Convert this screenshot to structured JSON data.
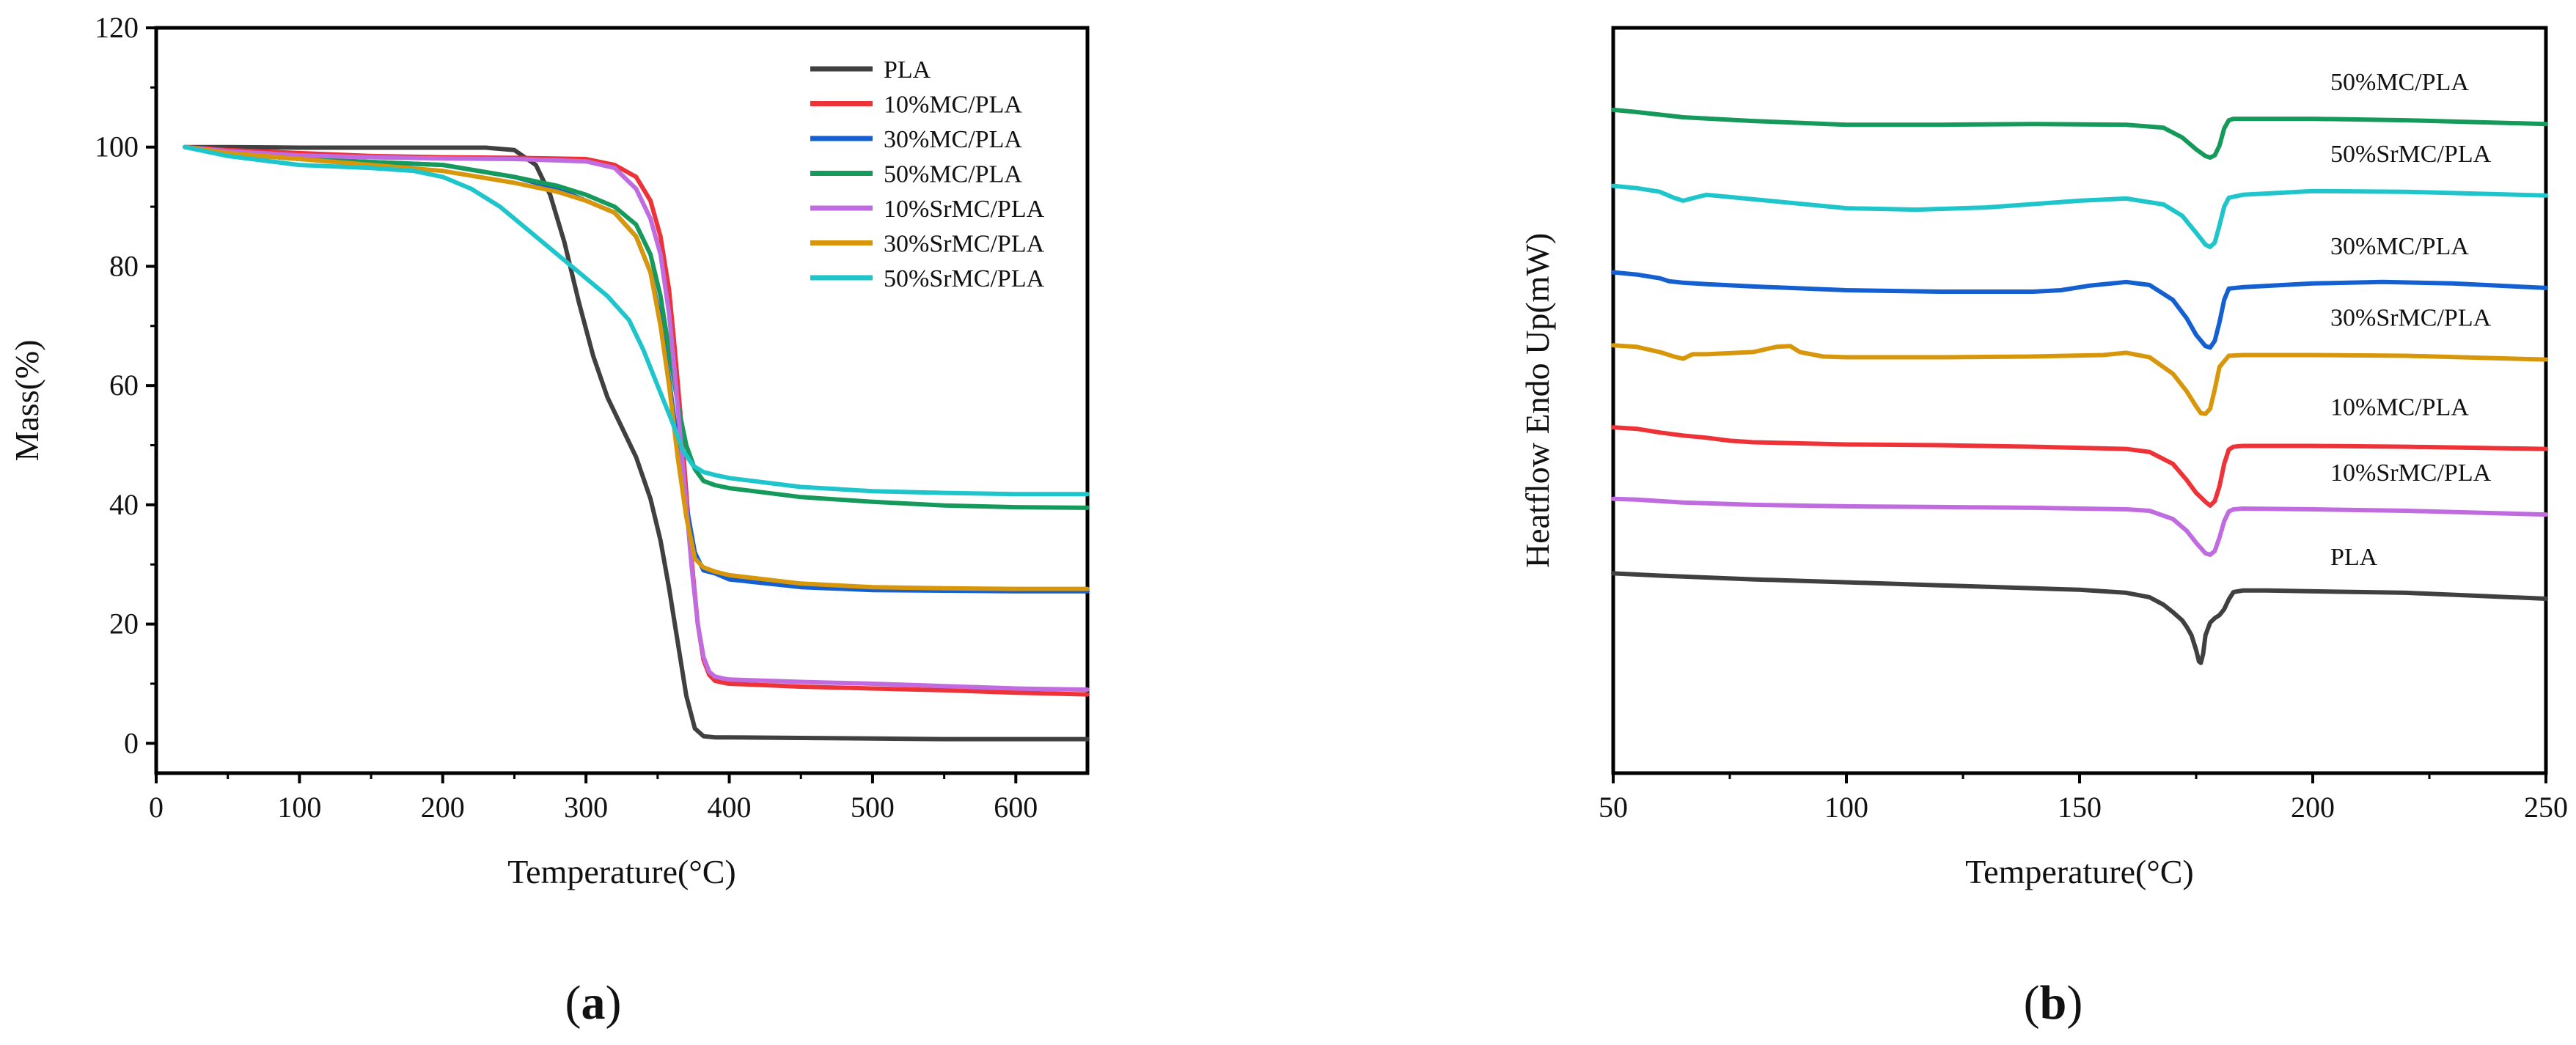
{
  "figure": {
    "panels": [
      {
        "open": "(",
        "letter": "a",
        "close": ")"
      },
      {
        "open": "(",
        "letter": "b",
        "close": ")"
      }
    ]
  },
  "chart_data": [
    {
      "type": "line",
      "panel": "a",
      "title": "",
      "xlabel": "Temperature(°C)",
      "ylabel": "Mass(%)",
      "xlim": [
        0,
        650
      ],
      "ylim": [
        -5,
        120
      ],
      "xticks": [
        0,
        100,
        200,
        300,
        400,
        500,
        600
      ],
      "yticks": [
        0,
        20,
        40,
        60,
        80,
        100,
        120
      ],
      "legend_position": "top-right",
      "series": [
        {
          "name": "PLA",
          "color": "#404040",
          "x": [
            20,
            50,
            100,
            150,
            200,
            230,
            250,
            265,
            275,
            285,
            295,
            305,
            315,
            325,
            335,
            345,
            352,
            358,
            364,
            370,
            376,
            382,
            390,
            400,
            450,
            500,
            550,
            600,
            650
          ],
          "y": [
            100,
            100,
            99.9,
            99.9,
            99.9,
            99.9,
            99.5,
            97,
            92,
            84,
            74,
            65,
            58,
            53,
            48,
            41,
            34,
            26,
            17,
            8,
            2.5,
            1.2,
            1.0,
            1.0,
            0.9,
            0.8,
            0.7,
            0.7,
            0.7
          ]
        },
        {
          "name": "10%MC/PLA",
          "color": "#ee3338",
          "x": [
            20,
            50,
            100,
            150,
            200,
            250,
            300,
            320,
            335,
            345,
            352,
            358,
            362,
            366,
            370,
            374,
            378,
            382,
            386,
            390,
            395,
            400,
            450,
            500,
            550,
            600,
            650
          ],
          "y": [
            100,
            99.5,
            99,
            98.5,
            98.3,
            98.2,
            98,
            97,
            95,
            91,
            85,
            76,
            66,
            55,
            42,
            30,
            20,
            14,
            11.5,
            10.5,
            10.2,
            10,
            9.5,
            9.2,
            8.9,
            8.5,
            8.2
          ]
        },
        {
          "name": "30%MC/PLA",
          "color": "#1560d0",
          "x": [
            20,
            50,
            100,
            150,
            200,
            250,
            280,
            300,
            320,
            335,
            345,
            352,
            358,
            364,
            370,
            376,
            382,
            390,
            400,
            450,
            500,
            550,
            600,
            650
          ],
          "y": [
            100,
            99,
            98,
            97.5,
            97,
            95,
            93,
            91,
            89,
            85,
            79,
            71,
            61,
            50,
            40,
            32,
            29,
            28.5,
            27.5,
            26.2,
            25.7,
            25.6,
            25.5,
            25.5
          ]
        },
        {
          "name": "50%MC/PLA",
          "color": "#159a5b",
          "x": [
            20,
            50,
            100,
            150,
            200,
            250,
            280,
            300,
            320,
            335,
            345,
            352,
            358,
            364,
            370,
            376,
            382,
            390,
            400,
            450,
            500,
            550,
            600,
            650
          ],
          "y": [
            100,
            99,
            98,
            97.5,
            97,
            95,
            93.5,
            92,
            90,
            87,
            82,
            75,
            66,
            57,
            50,
            46,
            44,
            43.3,
            42.8,
            41.3,
            40.5,
            39.9,
            39.6,
            39.5
          ]
        },
        {
          "name": "10%SrMC/PLA",
          "color": "#c06ce0",
          "x": [
            20,
            50,
            100,
            150,
            200,
            250,
            300,
            320,
            335,
            345,
            352,
            358,
            362,
            366,
            370,
            374,
            378,
            382,
            386,
            390,
            395,
            400,
            450,
            500,
            550,
            600,
            650
          ],
          "y": [
            100,
            99.3,
            98.6,
            98.3,
            98.1,
            98,
            97.6,
            96.5,
            93,
            88,
            82,
            72,
            62,
            51,
            40,
            29,
            20,
            14.5,
            12,
            11.2,
            10.9,
            10.7,
            10.3,
            10,
            9.6,
            9.2,
            9.0
          ]
        },
        {
          "name": "30%SrMC/PLA",
          "color": "#d8960a",
          "x": [
            20,
            50,
            100,
            150,
            200,
            250,
            280,
            300,
            320,
            335,
            345,
            352,
            358,
            364,
            370,
            376,
            382,
            390,
            400,
            450,
            500,
            550,
            600,
            650
          ],
          "y": [
            100,
            99,
            98,
            97,
            96,
            94,
            92.5,
            91,
            89,
            85,
            79,
            70,
            60,
            48,
            38,
            31,
            29.5,
            28.8,
            28.2,
            26.8,
            26.2,
            26,
            25.9,
            25.9
          ]
        },
        {
          "name": "50%SrMC/PLA",
          "color": "#1ec6cc",
          "x": [
            20,
            50,
            100,
            150,
            180,
            200,
            220,
            240,
            260,
            280,
            300,
            315,
            330,
            340,
            350,
            360,
            368,
            375,
            382,
            390,
            400,
            450,
            500,
            550,
            600,
            650
          ],
          "y": [
            100,
            98.5,
            97,
            96.5,
            96,
            95,
            93,
            90,
            86,
            82,
            78,
            75,
            71,
            66,
            60,
            54,
            49,
            46.5,
            45.5,
            45,
            44.5,
            43,
            42.3,
            42,
            41.8,
            41.8
          ]
        }
      ]
    },
    {
      "type": "line",
      "panel": "b",
      "title": "",
      "xlabel": "Temperature(°C)",
      "ylabel": "Heatflow Endo Up(mW)",
      "xlim": [
        50,
        250
      ],
      "ylim": [
        0,
        100
      ],
      "xticks": [
        50,
        100,
        150,
        200,
        250
      ],
      "yticks": [],
      "y_units": "arbitrary (curves vertically offset, no y tick labels)",
      "legend_position": "inline labels above each curve, right side",
      "series": [
        {
          "name": "50%MC/PLA",
          "color": "#159a5b",
          "x": [
            50,
            55,
            65,
            80,
            100,
            120,
            140,
            160,
            168,
            172,
            175,
            177,
            178,
            179,
            180,
            181,
            182,
            183,
            185,
            200,
            220,
            250
          ],
          "y": [
            89,
            88.7,
            88,
            87.5,
            87,
            87,
            87.1,
            87,
            86.6,
            85.3,
            83.7,
            82.8,
            82.6,
            82.9,
            84.2,
            86.5,
            87.6,
            87.8,
            87.8,
            87.8,
            87.6,
            87.1
          ]
        },
        {
          "name": "50%SrMC/PLA",
          "color": "#1ec6cc",
          "x": [
            50,
            55,
            60,
            63,
            65,
            68,
            70,
            80,
            100,
            115,
            130,
            150,
            160,
            168,
            172,
            175,
            177,
            178,
            179,
            180,
            181,
            182,
            185,
            200,
            220,
            250
          ],
          "y": [
            78.8,
            78.5,
            78,
            77.2,
            76.8,
            77.3,
            77.6,
            77,
            75.8,
            75.6,
            75.9,
            76.8,
            77.1,
            76.3,
            74.8,
            72.5,
            70.9,
            70.6,
            71.2,
            73.5,
            76,
            77.2,
            77.6,
            78.1,
            78,
            77.5
          ]
        },
        {
          "name": "30%MC/PLA",
          "color": "#1560d0",
          "x": [
            50,
            55,
            60,
            62,
            65,
            70,
            80,
            100,
            120,
            140,
            146,
            152,
            160,
            165,
            170,
            173,
            175,
            177,
            178,
            179,
            180,
            181,
            182,
            185,
            200,
            215,
            230,
            250
          ],
          "y": [
            67.2,
            66.9,
            66.4,
            66,
            65.8,
            65.6,
            65.3,
            64.8,
            64.6,
            64.6,
            64.8,
            65.4,
            65.9,
            65.5,
            63.5,
            61,
            58.8,
            57.3,
            57.1,
            58,
            60.5,
            63.5,
            65,
            65.2,
            65.7,
            65.9,
            65.7,
            65.1
          ]
        },
        {
          "name": "30%SrMC/PLA",
          "color": "#d8960a",
          "x": [
            50,
            55,
            60,
            63,
            65,
            67,
            70,
            80,
            85,
            88,
            90,
            95,
            100,
            120,
            140,
            155,
            160,
            165,
            170,
            173,
            175,
            176,
            177,
            178,
            179,
            180,
            182,
            185,
            200,
            220,
            250
          ],
          "y": [
            57.4,
            57.2,
            56.5,
            55.9,
            55.6,
            56.2,
            56.2,
            56.5,
            57.2,
            57.3,
            56.5,
            55.9,
            55.8,
            55.8,
            55.9,
            56.1,
            56.4,
            55.8,
            53.6,
            51.2,
            49.2,
            48.3,
            48.2,
            48.9,
            51.5,
            54.5,
            56,
            56.1,
            56.1,
            56,
            55.5
          ]
        },
        {
          "name": "10%MC/PLA",
          "color": "#ee3338",
          "x": [
            50,
            55,
            60,
            65,
            70,
            75,
            80,
            100,
            120,
            140,
            160,
            165,
            170,
            173,
            175,
            176,
            177,
            178,
            179,
            180,
            181,
            182,
            183,
            185,
            200,
            220,
            250
          ],
          "y": [
            46.4,
            46.2,
            45.7,
            45.3,
            45,
            44.6,
            44.4,
            44.1,
            44,
            43.8,
            43.5,
            43.1,
            41.5,
            39.3,
            37.6,
            37,
            36.4,
            35.9,
            36.5,
            38.5,
            41.5,
            43.4,
            43.8,
            43.9,
            43.9,
            43.8,
            43.5
          ]
        },
        {
          "name": "10%SrMC/PLA",
          "color": "#c06ce0",
          "x": [
            50,
            55,
            60,
            65,
            70,
            80,
            100,
            120,
            140,
            160,
            165,
            170,
            173,
            175,
            177,
            178,
            179,
            180,
            181,
            182,
            183,
            185,
            200,
            220,
            250
          ],
          "y": [
            36.8,
            36.7,
            36.5,
            36.3,
            36.2,
            36,
            35.8,
            35.7,
            35.6,
            35.4,
            35.2,
            34.1,
            32.5,
            30.9,
            29.5,
            29.3,
            29.8,
            31.6,
            33.8,
            35.1,
            35.4,
            35.5,
            35.4,
            35.2,
            34.7
          ]
        },
        {
          "name": "PLA",
          "color": "#404040",
          "x": [
            50,
            60,
            80,
            100,
            120,
            140,
            150,
            160,
            165,
            168,
            170,
            172,
            173,
            174,
            175,
            175.6,
            176,
            176.5,
            177,
            178,
            179,
            180,
            181,
            182,
            183,
            185,
            190,
            200,
            220,
            250
          ],
          "y": [
            26.8,
            26.5,
            26,
            25.6,
            25.2,
            24.8,
            24.6,
            24.2,
            23.6,
            22.6,
            21.6,
            20.5,
            19.6,
            18.5,
            16.5,
            15,
            14.8,
            16,
            18.5,
            20.2,
            20.8,
            21.2,
            22,
            23.3,
            24.3,
            24.5,
            24.5,
            24.4,
            24.2,
            23.4
          ]
        }
      ]
    }
  ]
}
